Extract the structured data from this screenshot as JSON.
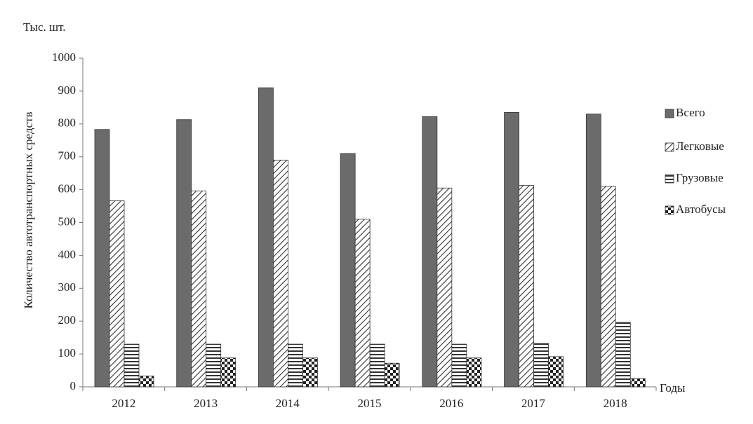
{
  "chart_data": {
    "type": "bar",
    "unit_label": "Тыс. шт.",
    "y_label": "Количество автотранспортных средств",
    "x_label": "Годы",
    "categories": [
      "2012",
      "2013",
      "2014",
      "2015",
      "2016",
      "2017",
      "2018"
    ],
    "series": [
      {
        "name": "Всего",
        "color": "#6b6b6b",
        "pattern": "solid",
        "values": [
          783,
          813,
          910,
          710,
          822,
          835,
          830
        ]
      },
      {
        "name": "Легковые",
        "color": "#333333",
        "pattern": "diagonal",
        "values": [
          566,
          596,
          690,
          510,
          605,
          613,
          610
        ]
      },
      {
        "name": "Грузовые",
        "color": "#333333",
        "pattern": "horizontal",
        "values": [
          130,
          130,
          130,
          130,
          130,
          132,
          196
        ]
      },
      {
        "name": "Автобусы",
        "color": "#333333",
        "pattern": "checker",
        "values": [
          33,
          88,
          88,
          72,
          88,
          92,
          25
        ]
      }
    ],
    "ylim": [
      0,
      1000
    ],
    "yticks": [
      0,
      100,
      200,
      300,
      400,
      500,
      600,
      700,
      800,
      900,
      1000
    ],
    "legend": "right"
  }
}
